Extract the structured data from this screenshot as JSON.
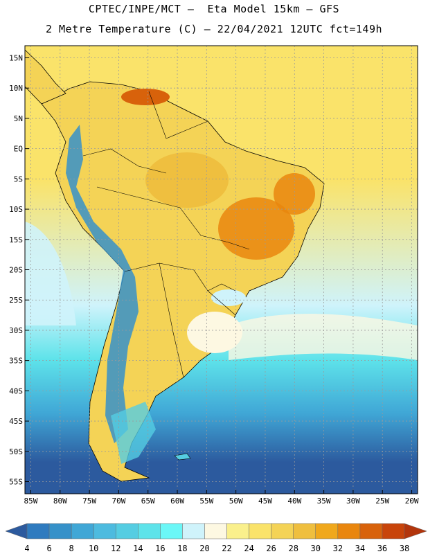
{
  "title_line1": "CPTEC/INPE/MCT –  Eta Model 15km – GFS",
  "title_line2": "2 Metre Temperature (C) – 22/04/2021 12UTC fct=149h",
  "lat_labels": [
    "15N",
    "10N",
    "5N",
    "EQ",
    "5S",
    "10S",
    "15S",
    "20S",
    "25S",
    "30S",
    "35S",
    "40S",
    "45S",
    "50S",
    "55S"
  ],
  "lon_labels": [
    "85W",
    "80W",
    "75W",
    "70W",
    "65W",
    "60W",
    "55W",
    "50W",
    "45W",
    "40W",
    "35W",
    "30W",
    "25W",
    "20W"
  ],
  "colorbar": {
    "labels": [
      "4",
      "6",
      "8",
      "10",
      "12",
      "14",
      "16",
      "18",
      "20",
      "22",
      "24",
      "26",
      "28",
      "30",
      "32",
      "34",
      "36",
      "38"
    ],
    "colors": [
      "#2c5a9e",
      "#2f7bbf",
      "#3691c9",
      "#40a7d6",
      "#4dbbdf",
      "#55cde2",
      "#5ee3ea",
      "#6bf7f7",
      "#cff3fb",
      "#fdf8e2",
      "#faf08c",
      "#fae36a",
      "#f4d356",
      "#efbf3f",
      "#f0a81c",
      "#e9860e",
      "#d8620b",
      "#c8440a",
      "#b2350c"
    ]
  },
  "map_colors": {
    "ocean_far_south": "#2c5a9e",
    "ocean_south": "#40a7d6",
    "ocean_mid": "#5ee3ea",
    "ocean_subtropic": "#cff3fb",
    "ocean_tropic": "#fae36a",
    "land_hot": "#efbf3f",
    "land_very_hot": "#e9860e",
    "andes_cold": "#3691c9"
  },
  "chart_data": {
    "type": "heatmap",
    "title": "2 Metre Temperature (C) – 22/04/2021 12UTC fct=149h",
    "source": "CPTEC/INPE/MCT – Eta Model 15km – GFS",
    "variable": "2 Metre Temperature",
    "units": "C",
    "init_time": "22/04/2021 12UTC",
    "forecast_hour": 149,
    "lon_range": [
      -86,
      -19
    ],
    "lat_range": [
      -57,
      17
    ],
    "lon_ticks": [
      -85,
      -80,
      -75,
      -70,
      -65,
      -60,
      -55,
      -50,
      -45,
      -40,
      -35,
      -30,
      -25,
      -20
    ],
    "lat_ticks": [
      15,
      10,
      5,
      0,
      -5,
      -10,
      -15,
      -20,
      -25,
      -30,
      -35,
      -40,
      -45,
      -50,
      -55
    ],
    "color_levels": [
      4,
      6,
      8,
      10,
      12,
      14,
      16,
      18,
      20,
      22,
      24,
      26,
      28,
      30,
      32,
      34,
      36,
      38
    ]
  }
}
